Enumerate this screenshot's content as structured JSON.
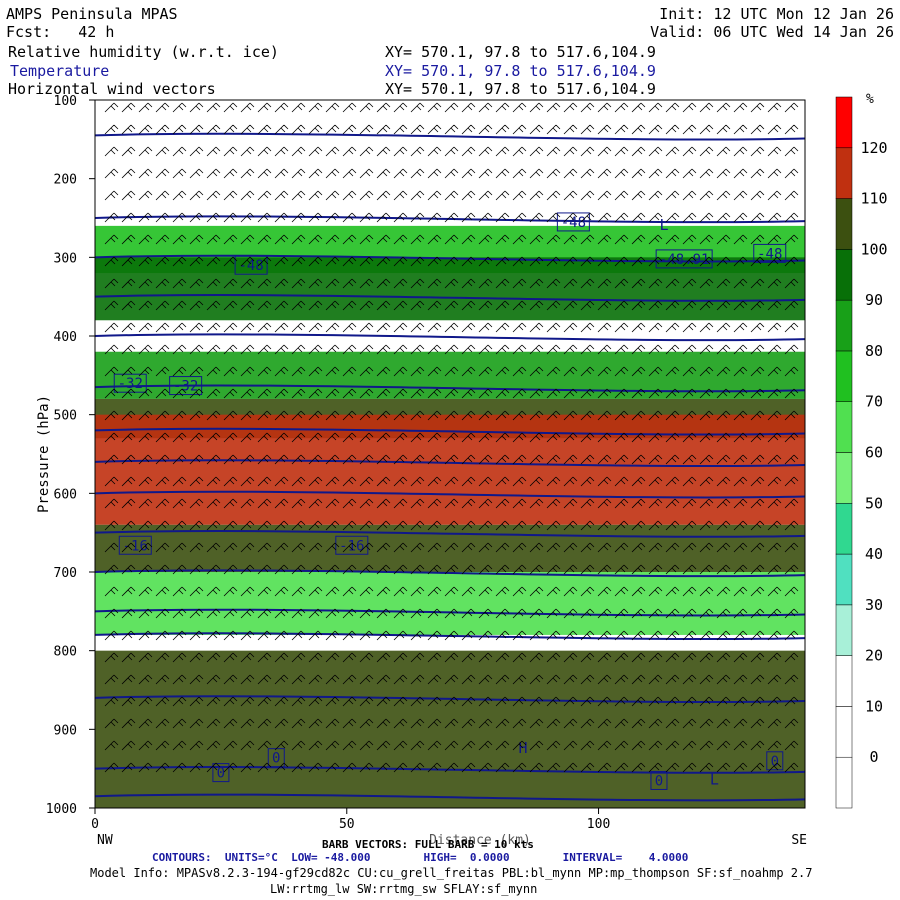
{
  "header": {
    "title": "AMPS Peninsula MPAS",
    "fcst": "Fcst:   42 h",
    "init": "Init: 12 UTC Mon 12 Jan 26",
    "valid": "Valid: 06 UTC Wed 14 Jan 26",
    "fields": [
      {
        "name": "Relative humidity (w.r.t. ice)",
        "xy": "XY= 570.1, 97.8 to 517.6,104.9"
      },
      {
        "name": "Temperature",
        "xy": "XY= 570.1, 97.8 to 517.6,104.9"
      },
      {
        "name": "Horizontal wind vectors",
        "xy": "XY= 570.1, 97.8 to 517.6,104.9"
      }
    ]
  },
  "chart_data": {
    "type": "heatmap",
    "ylabel": "Pressure (hPa)",
    "xlabel": "Distance (km)",
    "x_ticks": [
      0,
      50,
      100
    ],
    "xlim": [
      0,
      141
    ],
    "y_ticks": [
      100,
      200,
      300,
      400,
      500,
      600,
      700,
      800,
      900,
      1000
    ],
    "ylim": [
      1000,
      100
    ],
    "x_end_labels": {
      "left": "NW",
      "right": "SE"
    },
    "colorbar": {
      "unit": "%",
      "levels": [
        0,
        10,
        20,
        30,
        40,
        50,
        60,
        70,
        80,
        90,
        100,
        110,
        120
      ],
      "colors": [
        "#ffffff",
        "#ffffff",
        "#ffffff",
        "#a8f0d8",
        "#50e0c0",
        "#30d890",
        "#78f078",
        "#50e050",
        "#20c020",
        "#18a018",
        "#087008",
        "#3c5010",
        "#c03010",
        "#ff0000"
      ]
    },
    "rh_bands": [
      {
        "p_top": 260,
        "p_bot": 320,
        "rh": 70
      },
      {
        "p_top": 300,
        "p_bot": 380,
        "rh": 95
      },
      {
        "p_top": 420,
        "p_bot": 480,
        "rh": 80
      },
      {
        "p_top": 480,
        "p_bot": 530,
        "rh": 100
      },
      {
        "p_top": 500,
        "p_bot": 640,
        "rh": 112
      },
      {
        "p_top": 640,
        "p_bot": 700,
        "rh": 100
      },
      {
        "p_top": 700,
        "p_bot": 780,
        "rh": 60
      },
      {
        "p_top": 800,
        "p_bot": 1000,
        "rh": 100
      }
    ],
    "temperature_contours": {
      "units": "°C",
      "low": "-48.000",
      "high": "0.0000",
      "interval": "4.0000",
      "labels": [
        {
          "text": "-48",
          "x": 95,
          "p": 255
        },
        {
          "text": "-48",
          "x": 31,
          "p": 310
        },
        {
          "text": "-48",
          "x": 134,
          "p": 295
        },
        {
          "text": "-48.91",
          "x": 117,
          "p": 302
        },
        {
          "text": "-32",
          "x": 7,
          "p": 460
        },
        {
          "text": "-32",
          "x": 18,
          "p": 463
        },
        {
          "text": "-16",
          "x": 8,
          "p": 666
        },
        {
          "text": "-16",
          "x": 51,
          "p": 666
        },
        {
          "text": "0",
          "x": 25,
          "p": 955
        },
        {
          "text": "0",
          "x": 36,
          "p": 936
        },
        {
          "text": "0",
          "x": 112,
          "p": 965
        },
        {
          "text": "0",
          "x": 135,
          "p": 940
        }
      ],
      "markers": [
        {
          "text": "L",
          "x": 113,
          "p": 265
        },
        {
          "text": "H",
          "x": 85,
          "p": 930
        },
        {
          "text": "L",
          "x": 123,
          "p": 970
        }
      ]
    }
  },
  "footer": {
    "barb": "BARB VECTORS: FULL BARB = 10 kts",
    "contours": "CONTOURS:  UNITS=°C  LOW= -48.000        HIGH=  0.0000        INTERVAL=    4.0000",
    "model_info": "Model Info: MPASv8.2.3-194-gf29cd82c CU:cu_grell_freitas PBL:bl_mynn MP:mp_thompson SF:sf_noahmp 2.7",
    "physics": "LW:rrtmg_lw SW:rrtmg_sw SFLAY:sf_mynn"
  }
}
